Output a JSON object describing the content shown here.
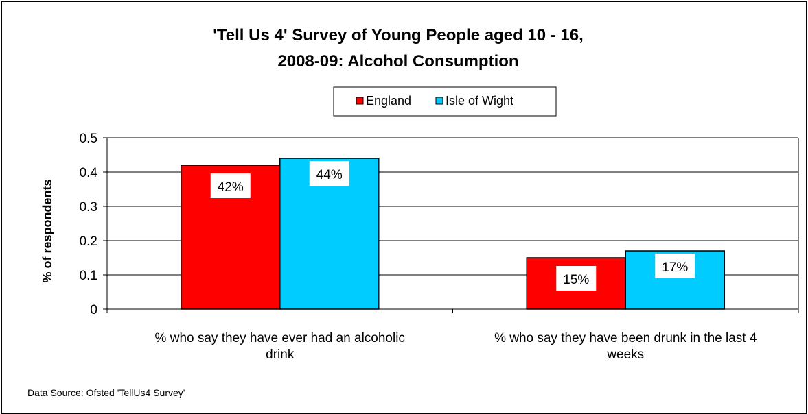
{
  "chart_data": {
    "type": "bar",
    "title_lines": [
      "'Tell Us 4' Survey of Young People aged 10 - 16,",
      "2008-09:   Alcohol Consumption"
    ],
    "ylabel": "% of respondents",
    "xlabel": "",
    "categories": [
      [
        "% who say they have ever had an alcoholic",
        "drink"
      ],
      [
        "% who say they have been drunk in the last 4",
        "weeks"
      ]
    ],
    "series": [
      {
        "name": "England",
        "color": "#ff0000",
        "values": [
          0.42,
          0.15
        ],
        "data_labels": [
          "42%",
          "15%"
        ]
      },
      {
        "name": "Isle of Wight",
        "color": "#00ccff",
        "values": [
          0.44,
          0.17
        ],
        "data_labels": [
          "44%",
          "17%"
        ]
      }
    ],
    "ylim": [
      0,
      0.5
    ],
    "yticks": [
      "0",
      "0.1",
      "0.2",
      "0.3",
      "0.4",
      "0.5"
    ],
    "grid": true,
    "legend_position": "top-center",
    "source": "Data Source: Ofsted 'TellUs4 Survey'"
  }
}
